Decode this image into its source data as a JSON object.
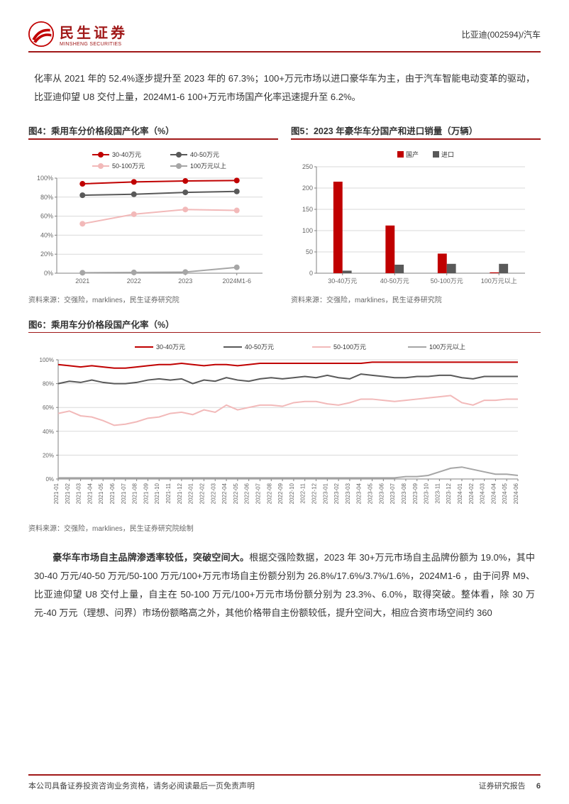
{
  "header": {
    "company_cn": "民生证券",
    "company_en": "MINSHENG SECURITIES",
    "ticker": "比亚迪(002594)/汽车"
  },
  "paragraph1": "化率从 2021 年的 52.4%逐步提升至 2023 年的 67.3%；100+万元市场以进口豪华车为主，由于汽车智能电动变革的驱动，比亚迪仰望 U8 交付上量，2024M1-6 100+万元市场国产化率迅速提升至 6.2%。",
  "chart4": {
    "title": "图4：乘用车分价格段国产化率（%）",
    "type": "line",
    "categories": [
      "2021",
      "2022",
      "2023",
      "2024M1-6"
    ],
    "series": [
      {
        "name": "30-40万元",
        "color": "#c00000",
        "marker": "circle",
        "values": [
          94,
          96,
          97,
          97.5
        ]
      },
      {
        "name": "40-50万元",
        "color": "#595959",
        "marker": "circle",
        "values": [
          82,
          83,
          85,
          86
        ]
      },
      {
        "name": "50-100万元",
        "color": "#f2b9b9",
        "marker": "circle",
        "values": [
          52,
          62,
          67,
          66
        ]
      },
      {
        "name": "100万元以上",
        "color": "#a6a6a6",
        "marker": "circle",
        "values": [
          0.5,
          0.8,
          1.2,
          6.2
        ]
      }
    ],
    "ylim": [
      0,
      100
    ],
    "ytick_step": 20,
    "axis_color": "#808080",
    "grid_color": "#d9d9d9",
    "label_fontsize": 9,
    "line_width": 2,
    "marker_size": 4,
    "source": "资料来源：交强险，marklines，民生证券研究院"
  },
  "chart5": {
    "title": "图5：2023 年豪华车分国产和进口销量（万辆）",
    "type": "bar",
    "categories": [
      "30-40万元",
      "40-50万元",
      "50-100万元",
      "100万元以上"
    ],
    "series": [
      {
        "name": "国产",
        "color": "#c00000",
        "values": [
          215,
          112,
          46,
          2
        ]
      },
      {
        "name": "进口",
        "color": "#595959",
        "values": [
          6,
          20,
          22,
          22
        ]
      }
    ],
    "ylim": [
      0,
      250
    ],
    "ytick_step": 50,
    "axis_color": "#808080",
    "grid_color": "#d9d9d9",
    "label_fontsize": 9,
    "bar_width": 0.35,
    "source": "资料来源：交强险，marklines，民生证券研究院"
  },
  "chart6": {
    "title": "图6：乘用车分价格段国产化率（%）",
    "type": "line",
    "categories": [
      "2021-01",
      "2021-02",
      "2021-03",
      "2021-04",
      "2021-05",
      "2021-06",
      "2021-07",
      "2021-08",
      "2021-09",
      "2021-10",
      "2021-11",
      "2021-12",
      "2022-01",
      "2022-02",
      "2022-03",
      "2022-04",
      "2022-05",
      "2022-06",
      "2022-07",
      "2022-08",
      "2022-09",
      "2022-10",
      "2022-11",
      "2022-12",
      "2023-01",
      "2023-02",
      "2023-03",
      "2023-04",
      "2023-05",
      "2023-06",
      "2023-07",
      "2023-08",
      "2023-09",
      "2023-10",
      "2023-11",
      "2023-12",
      "2024-01",
      "2024-02",
      "2024-03",
      "2024-04",
      "2024-05",
      "2024-06"
    ],
    "series": [
      {
        "name": "30-40万元",
        "color": "#c00000",
        "values": [
          96,
          95,
          94,
          95,
          94,
          93,
          93,
          94,
          95,
          96,
          96,
          97,
          96,
          95,
          96,
          96,
          95,
          96,
          97,
          97,
          97,
          97,
          97,
          97,
          97,
          97,
          97,
          97,
          98,
          98,
          98,
          98,
          98,
          98,
          98,
          98,
          98,
          98,
          98,
          98,
          98,
          98
        ]
      },
      {
        "name": "40-50万元",
        "color": "#595959",
        "values": [
          80,
          82,
          81,
          83,
          81,
          80,
          80,
          81,
          83,
          84,
          83,
          84,
          80,
          83,
          82,
          85,
          83,
          82,
          84,
          85,
          84,
          85,
          86,
          85,
          87,
          85,
          84,
          88,
          87,
          86,
          85,
          85,
          86,
          86,
          87,
          87,
          85,
          84,
          86,
          86,
          86,
          86
        ]
      },
      {
        "name": "50-100万元",
        "color": "#f2b9b9",
        "values": [
          55,
          57,
          53,
          52,
          49,
          45,
          46,
          48,
          51,
          52,
          55,
          56,
          54,
          58,
          56,
          62,
          58,
          60,
          62,
          62,
          61,
          64,
          65,
          65,
          63,
          62,
          64,
          67,
          67,
          66,
          65,
          66,
          67,
          68,
          69,
          70,
          64,
          62,
          66,
          66,
          67,
          67
        ]
      },
      {
        "name": "100万元以上",
        "color": "#a6a6a6",
        "values": [
          1,
          1,
          1,
          1,
          1,
          1,
          1,
          1,
          1,
          1,
          1,
          1,
          1,
          1,
          1,
          1,
          1,
          1,
          1,
          1,
          1,
          1,
          1,
          1,
          1,
          1,
          1,
          1,
          1,
          1,
          1,
          2,
          2,
          3,
          6,
          9,
          10,
          8,
          6,
          4,
          4,
          3
        ]
      }
    ],
    "ylim": [
      0,
      100
    ],
    "ytick_step": 20,
    "axis_color": "#808080",
    "grid_color": "#d9d9d9",
    "label_fontsize": 8,
    "line_width": 2,
    "source": "资料来源：交强险，marklines，民生证券研究院绘制"
  },
  "paragraph2_bold": "豪华车市场自主品牌渗透率较低，突破空间大。",
  "paragraph2_rest": "根据交强险数据，2023 年 30+万元市场自主品牌份额为 19.0%，其中 30-40 万元/40-50 万元/50-100 万元/100+万元市场自主份额分别为 26.8%/17.6%/3.7%/1.6%，2024M1-6 ，由于问界 M9、比亚迪仰望 U8 交付上量，自主在 50-100 万元/100+万元市场份额分别为 23.3%、6.0%，取得突破。整体看，除 30 万元-40 万元（理想、问界）市场份额略高之外，其他价格带自主份额较低，提升空间大，相应合资市场空间约 360",
  "footer": {
    "left": "本公司具备证券投资咨询业务资格，请务必阅读最后一页免责声明",
    "right": "证券研究报告",
    "page": "6"
  }
}
